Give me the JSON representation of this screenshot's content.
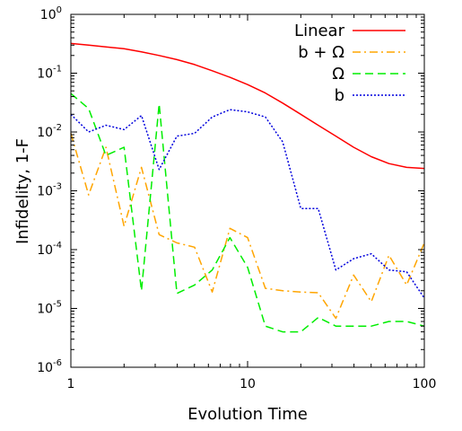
{
  "chart_data": {
    "type": "line",
    "title": "",
    "xlabel": "Evolution Time",
    "ylabel": "Infidelity, 1-F",
    "xscale": "log",
    "yscale": "log",
    "xlim": [
      1,
      100
    ],
    "ylim": [
      1e-06,
      1
    ],
    "grid": false,
    "legend_position": "top-right",
    "x_ticks": [
      {
        "value": 1,
        "label": "1"
      },
      {
        "value": 10,
        "label": "10"
      },
      {
        "value": 100,
        "label": "100"
      }
    ],
    "y_ticks": [
      {
        "value": 1,
        "base": "10",
        "exp": "0"
      },
      {
        "value": 0.1,
        "base": "10",
        "exp": "-1"
      },
      {
        "value": 0.01,
        "base": "10",
        "exp": "-2"
      },
      {
        "value": 0.001,
        "base": "10",
        "exp": "-3"
      },
      {
        "value": 0.0001,
        "base": "10",
        "exp": "-4"
      },
      {
        "value": 1e-05,
        "base": "10",
        "exp": "-5"
      },
      {
        "value": 1e-06,
        "base": "10",
        "exp": "-6"
      }
    ],
    "series": [
      {
        "name": "Linear",
        "color": "#ff0000",
        "dash": "solid",
        "x": [
          1,
          1.26,
          1.58,
          2,
          2.51,
          3.16,
          3.98,
          5.01,
          6.31,
          7.94,
          10,
          12.6,
          15.8,
          20,
          25.1,
          31.6,
          39.8,
          50.1,
          63.1,
          79.4,
          100
        ],
        "y": [
          0.32,
          0.3,
          0.28,
          0.26,
          0.23,
          0.2,
          0.17,
          0.14,
          0.11,
          0.085,
          0.064,
          0.046,
          0.031,
          0.02,
          0.013,
          0.0085,
          0.0055,
          0.0038,
          0.0029,
          0.0025,
          0.0024
        ]
      },
      {
        "name": "b + Ω",
        "color": "#ffa500",
        "dash": "dashdot",
        "x": [
          1,
          1.26,
          1.58,
          2,
          2.51,
          3.16,
          3.98,
          5.01,
          6.31,
          7.94,
          10,
          12.6,
          15.8,
          20,
          25.1,
          31.6,
          39.8,
          50.1,
          63.1,
          79.4,
          100
        ],
        "y": [
          0.0095,
          0.00085,
          0.0055,
          0.00025,
          0.0025,
          0.00018,
          0.00013,
          0.00011,
          1.9e-05,
          0.00023,
          0.00016,
          2.2e-05,
          2e-05,
          1.9e-05,
          1.85e-05,
          6.8e-06,
          3.7e-05,
          1.3e-05,
          8e-05,
          2.5e-05,
          0.00013
        ]
      },
      {
        "name": "Ω",
        "color": "#00ee00",
        "dash": "dashed",
        "x": [
          1,
          1.26,
          1.58,
          2,
          2.51,
          3.16,
          3.98,
          5.01,
          6.31,
          7.94,
          10,
          12.6,
          15.8,
          20,
          25.1,
          31.6,
          39.8,
          50.1,
          63.1,
          79.4,
          100
        ],
        "y": [
          0.045,
          0.025,
          0.004,
          0.0055,
          2e-05,
          0.03,
          1.8e-05,
          2.5e-05,
          4.5e-05,
          0.00016,
          5e-05,
          5e-06,
          4e-06,
          4e-06,
          7e-06,
          5e-06,
          5e-06,
          5e-06,
          6e-06,
          6e-06,
          5e-06
        ]
      },
      {
        "name": "b",
        "color": "#0000dd",
        "dash": "dotted",
        "x": [
          1,
          1.26,
          1.58,
          2,
          2.51,
          3.16,
          3.98,
          5.01,
          6.31,
          7.94,
          10,
          12.6,
          15.8,
          20,
          25.1,
          31.6,
          39.8,
          50.1,
          63.1,
          79.4,
          100
        ],
        "y": [
          0.02,
          0.01,
          0.013,
          0.011,
          0.019,
          0.0023,
          0.0085,
          0.0095,
          0.018,
          0.024,
          0.022,
          0.018,
          0.0068,
          0.0005,
          0.0005,
          4.5e-05,
          7e-05,
          8.5e-05,
          4.5e-05,
          4.2e-05,
          1.5e-05
        ]
      }
    ]
  }
}
